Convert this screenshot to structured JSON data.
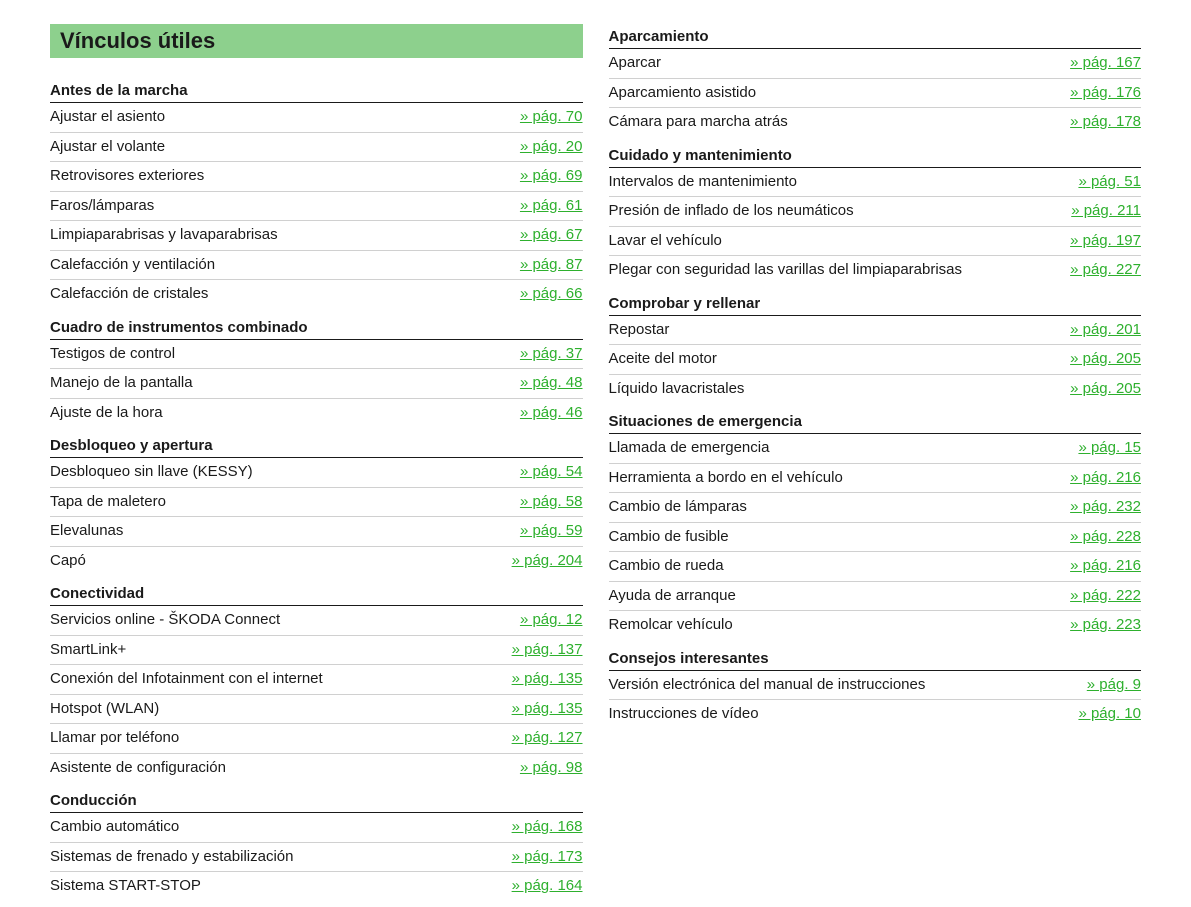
{
  "title": "Vínculos útiles",
  "page_prefix": "» pág. ",
  "colors": {
    "title_bg": "#8dd08d",
    "link_green": "#2eb02e",
    "text": "#1a1a1a",
    "rule": "#d0d0d0"
  },
  "left_sections": [
    {
      "heading": "Antes de la marcha",
      "entries": [
        {
          "label": "Ajustar el asiento",
          "page": 70
        },
        {
          "label": "Ajustar el volante",
          "page": 20
        },
        {
          "label": "Retrovisores exteriores",
          "page": 69
        },
        {
          "label": "Faros/lámparas",
          "page": 61
        },
        {
          "label": "Limpiaparabrisas y lavaparabrisas",
          "page": 67
        },
        {
          "label": "Calefacción y ventilación",
          "page": 87
        },
        {
          "label": "Calefacción de cristales",
          "page": 66
        }
      ]
    },
    {
      "heading": "Cuadro de instrumentos combinado",
      "entries": [
        {
          "label": "Testigos de control",
          "page": 37
        },
        {
          "label": "Manejo de la pantalla",
          "page": 48
        },
        {
          "label": "Ajuste de la hora",
          "page": 46
        }
      ]
    },
    {
      "heading": "Desbloqueo y apertura",
      "entries": [
        {
          "label": "Desbloqueo sin llave (KESSY)",
          "page": 54
        },
        {
          "label": "Tapa de maletero",
          "page": 58
        },
        {
          "label": "Elevalunas",
          "page": 59
        },
        {
          "label": "Capó",
          "page": 204
        }
      ]
    },
    {
      "heading": "Conectividad",
      "entries": [
        {
          "label": "Servicios online - ŠKODA Connect",
          "page": 12
        },
        {
          "label": "SmartLink+",
          "page": 137
        },
        {
          "label": "Conexión del Infotainment con el internet",
          "page": 135
        },
        {
          "label": "Hotspot (WLAN)",
          "page": 135
        },
        {
          "label": "Llamar por teléfono",
          "page": 127
        },
        {
          "label": "Asistente de configuración",
          "page": 98
        }
      ]
    },
    {
      "heading": "Conducción",
      "entries": [
        {
          "label": "Cambio automático",
          "page": 168
        },
        {
          "label": "Sistemas de frenado y estabilización",
          "page": 173
        },
        {
          "label": "Sistema START-STOP",
          "page": 164
        }
      ]
    }
  ],
  "right_sections": [
    {
      "heading": "Aparcamiento",
      "entries": [
        {
          "label": "Aparcar",
          "page": 167
        },
        {
          "label": "Aparcamiento asistido",
          "page": 176
        },
        {
          "label": "Cámara para marcha atrás",
          "page": 178
        }
      ]
    },
    {
      "heading": "Cuidado y mantenimiento",
      "entries": [
        {
          "label": "Intervalos de mantenimiento",
          "page": 51
        },
        {
          "label": "Presión de inflado de los neumáticos",
          "page": 211
        },
        {
          "label": "Lavar el vehículo",
          "page": 197
        },
        {
          "label": "Plegar con seguridad las varillas del limpiaparabrisas",
          "page": 227
        }
      ]
    },
    {
      "heading": "Comprobar y rellenar",
      "entries": [
        {
          "label": "Repostar",
          "page": 201
        },
        {
          "label": "Aceite del motor",
          "page": 205
        },
        {
          "label": "Líquido lavacristales",
          "page": 205
        }
      ]
    },
    {
      "heading": "Situaciones de emergencia",
      "entries": [
        {
          "label": "Llamada de emergencia",
          "page": 15
        },
        {
          "label": "Herramienta a bordo en el vehículo",
          "page": 216
        },
        {
          "label": "Cambio de lámparas",
          "page": 232
        },
        {
          "label": "Cambio de fusible",
          "page": 228
        },
        {
          "label": "Cambio de rueda",
          "page": 216
        },
        {
          "label": "Ayuda de arranque",
          "page": 222
        },
        {
          "label": "Remolcar vehículo",
          "page": 223
        }
      ]
    },
    {
      "heading": "Consejos interesantes",
      "entries": [
        {
          "label": "Versión electrónica del manual de instrucciones",
          "page": 9
        },
        {
          "label": "Instrucciones de vídeo",
          "page": 10
        }
      ]
    }
  ]
}
